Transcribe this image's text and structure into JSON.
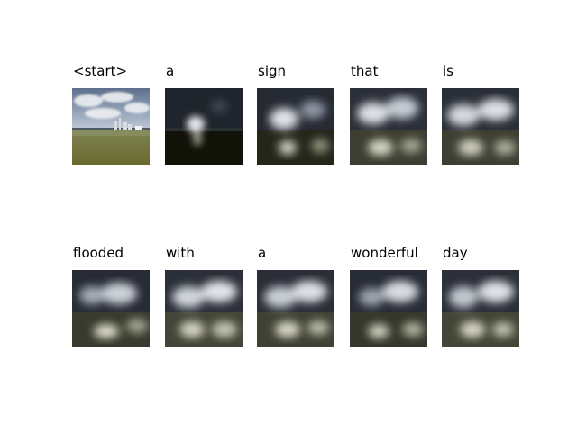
{
  "figure": {
    "steps": [
      {
        "word": "<start>",
        "kind": "photo",
        "attention": "none"
      },
      {
        "word": "a",
        "kind": "attention",
        "attention": "low-center"
      },
      {
        "word": "sign",
        "kind": "attention",
        "attention": "left-center"
      },
      {
        "word": "that",
        "kind": "attention",
        "attention": "diffuse"
      },
      {
        "word": "is",
        "kind": "attention",
        "attention": "diffuse"
      },
      {
        "word": "flooded",
        "kind": "attention",
        "attention": "diffuse"
      },
      {
        "word": "with",
        "kind": "attention",
        "attention": "diffuse"
      },
      {
        "word": "a",
        "kind": "attention",
        "attention": "diffuse"
      },
      {
        "word": "wonderful",
        "kind": "attention",
        "attention": "diffuse"
      },
      {
        "word": "day",
        "kind": "attention",
        "attention": "diffuse"
      }
    ]
  }
}
